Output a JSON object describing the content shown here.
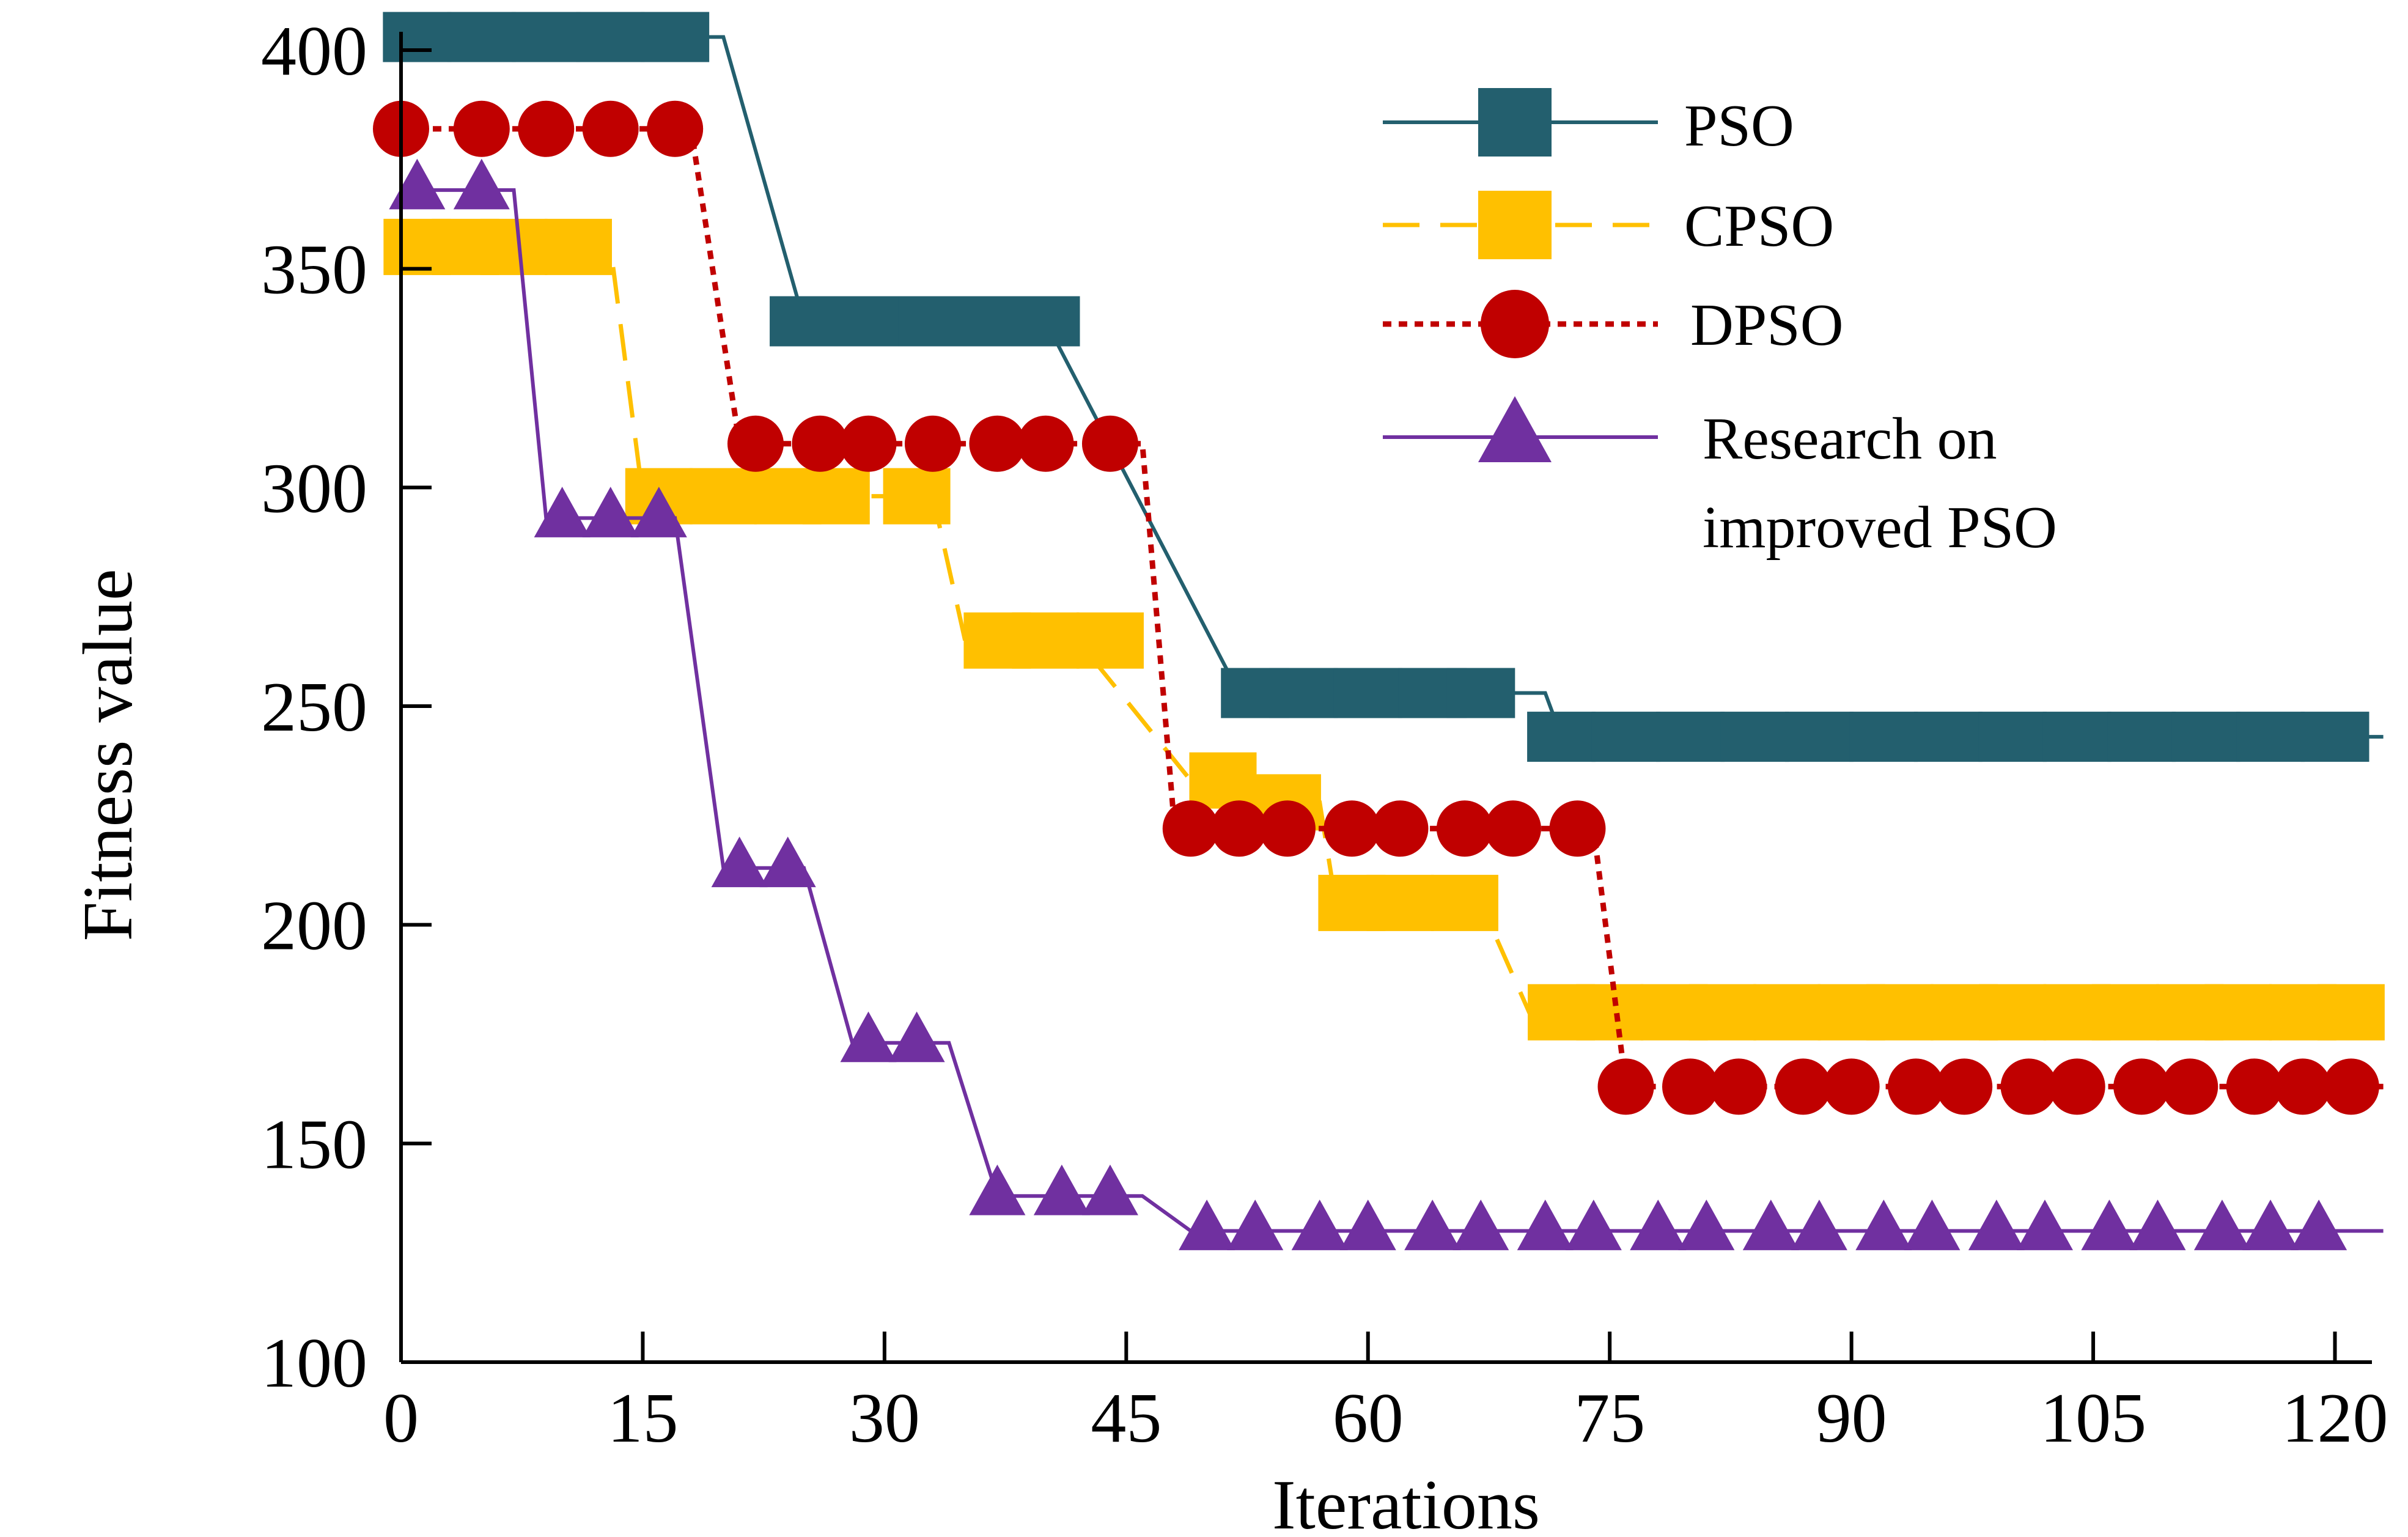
{
  "chart_data": {
    "type": "line",
    "title": "",
    "xlabel": "Iterations",
    "ylabel": "Fitness value",
    "xlim": [
      0,
      123
    ],
    "ylim": [
      100,
      400
    ],
    "xticks": [
      0,
      15,
      30,
      45,
      60,
      75,
      90,
      105,
      120
    ],
    "yticks": [
      100,
      150,
      200,
      250,
      300,
      350,
      400
    ],
    "grid": false,
    "legend_position": "top-right",
    "series": [
      {
        "name": "PSO",
        "color": "#235f6e",
        "marker": "square",
        "line": "solid",
        "x": [
          0,
          1,
          5,
          9,
          13,
          17,
          20,
          25,
          29,
          33,
          37,
          40,
          52,
          56,
          60,
          64,
          67,
          71,
          72,
          76,
          80,
          84,
          88,
          92,
          96,
          100,
          104,
          108,
          112,
          116,
          120,
          123
        ],
        "y": [
          400,
          403,
          403,
          403,
          403,
          403,
          403,
          338,
          338,
          338,
          338,
          338,
          253,
          253,
          253,
          253,
          253,
          253,
          243,
          243,
          243,
          243,
          243,
          243,
          243,
          243,
          243,
          243,
          243,
          243,
          243,
          243
        ],
        "marker_x": [
          1,
          5,
          9,
          13,
          17,
          25,
          29,
          33,
          37,
          40,
          53,
          56,
          60,
          64,
          67,
          72,
          76,
          80,
          84,
          88,
          92,
          96,
          100,
          104,
          108,
          112,
          116,
          120
        ],
        "marker_y": [
          403,
          403,
          403,
          403,
          403,
          338,
          338,
          338,
          338,
          338,
          253,
          253,
          253,
          253,
          253,
          243,
          243,
          243,
          243,
          243,
          243,
          243,
          243,
          243,
          243,
          243,
          243,
          243
        ]
      },
      {
        "name": "CPSO",
        "color": "#ffc000",
        "marker": "square",
        "line": "dashed",
        "x": [
          0,
          13,
          15,
          33,
          35,
          42,
          49,
          57,
          58,
          67,
          70,
          123
        ],
        "y": [
          355,
          355,
          298,
          298,
          265,
          265,
          233,
          228,
          205,
          205,
          180,
          180
        ],
        "marker_x": [
          1,
          4,
          7,
          11,
          16,
          20,
          24,
          27,
          32,
          37,
          40,
          44,
          51,
          55,
          59,
          62,
          66,
          72,
          75,
          79,
          82,
          86,
          90,
          93,
          97,
          100,
          104,
          107,
          111,
          114,
          118,
          121
        ],
        "marker_y": [
          355,
          355,
          355,
          355,
          298,
          298,
          298,
          298,
          298,
          265,
          265,
          265,
          233,
          228,
          205,
          205,
          205,
          180,
          180,
          180,
          180,
          180,
          180,
          180,
          180,
          180,
          180,
          180,
          180,
          180,
          180,
          180
        ]
      },
      {
        "name": "DPSO",
        "color": "#c00000",
        "marker": "circle",
        "line": "dotted",
        "x": [
          0,
          18,
          21,
          46,
          48,
          74,
          76,
          123
        ],
        "y": [
          382,
          382,
          310,
          310,
          222,
          222,
          163,
          163
        ],
        "marker_x": [
          0,
          5,
          9,
          13,
          17,
          22,
          26,
          29,
          33,
          37,
          40,
          44,
          49,
          52,
          55,
          59,
          62,
          66,
          69,
          73,
          76,
          80,
          83,
          87,
          90,
          94,
          97,
          101,
          104,
          108,
          111,
          115,
          118,
          121
        ],
        "marker_y": [
          382,
          382,
          382,
          382,
          382,
          310,
          310,
          310,
          310,
          310,
          310,
          310,
          222,
          222,
          222,
          222,
          222,
          222,
          222,
          222,
          163,
          163,
          163,
          163,
          163,
          163,
          163,
          163,
          163,
          163,
          163,
          163,
          163,
          163
        ]
      },
      {
        "name": "Research on improved PSO",
        "color": "#7030a0",
        "marker": "triangle",
        "line": "solid",
        "x": [
          0,
          7,
          9,
          17,
          20,
          25,
          28,
          34,
          37,
          46,
          49,
          123
        ],
        "y": [
          368,
          368,
          293,
          293,
          213,
          213,
          173,
          173,
          138,
          138,
          130,
          130
        ],
        "marker_x": [
          1,
          5,
          10,
          13,
          16,
          21,
          24,
          29,
          32,
          37,
          41,
          44,
          50,
          53,
          57,
          60,
          64,
          67,
          71,
          74,
          78,
          81,
          85,
          88,
          92,
          95,
          99,
          102,
          106,
          109,
          113,
          116,
          119
        ],
        "marker_y": [
          368,
          368,
          293,
          293,
          293,
          213,
          213,
          173,
          173,
          138,
          138,
          138,
          130,
          130,
          130,
          130,
          130,
          130,
          130,
          130,
          130,
          130,
          130,
          130,
          130,
          130,
          130,
          130,
          130,
          130,
          130,
          130,
          130
        ]
      }
    ],
    "legend": [
      {
        "label": "PSO"
      },
      {
        "label": "CPSO"
      },
      {
        "label": "DPSO"
      },
      {
        "label_line1": "Research on",
        "label_line2": "improved PSO"
      }
    ]
  }
}
